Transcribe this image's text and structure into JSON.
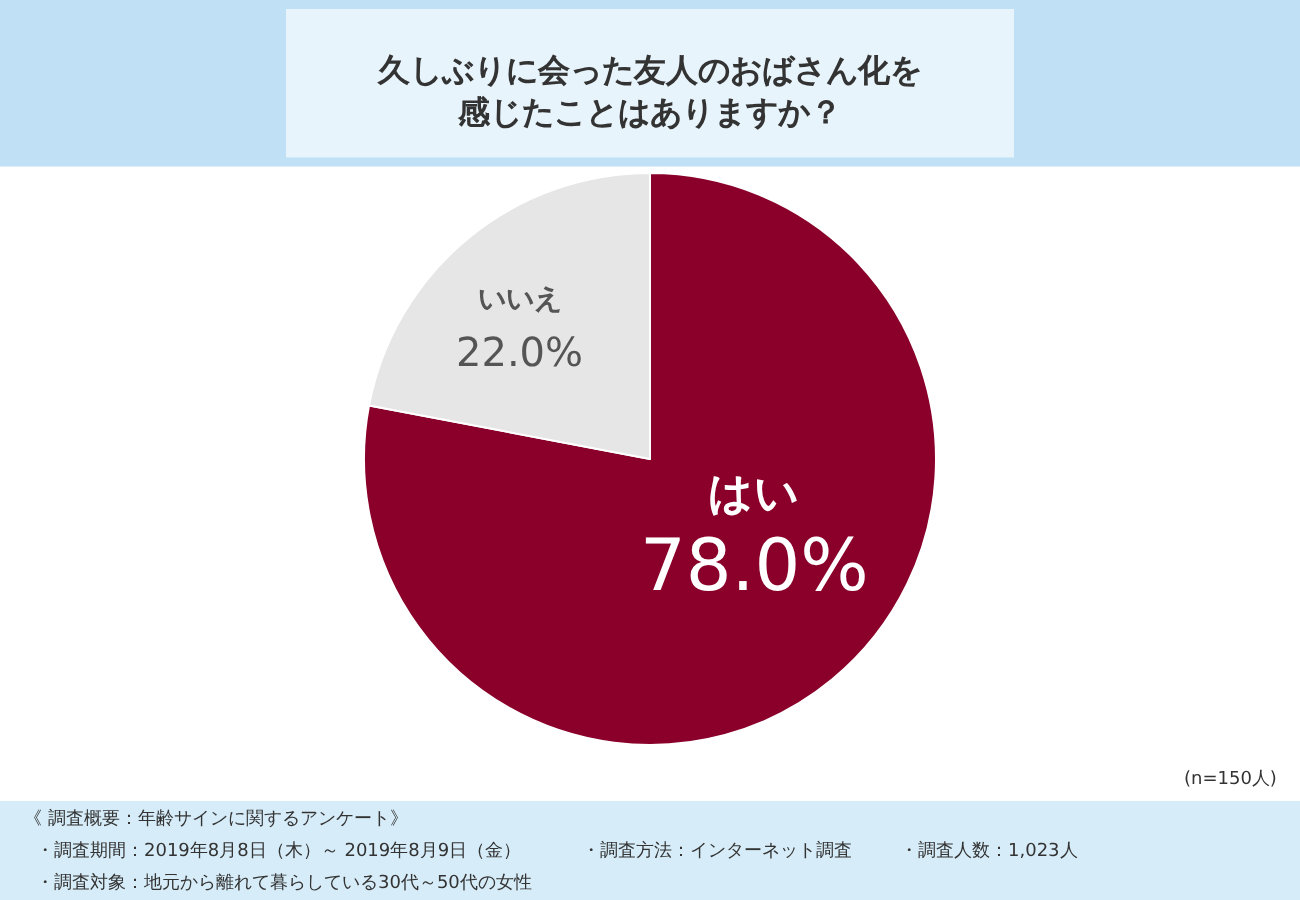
{
  "chart_data": {
    "type": "pie",
    "title": "久しぶりに会った友人のおばさん化を感じたことはありますか？",
    "categories": [
      "はい",
      "いいえ"
    ],
    "values": [
      78.0,
      22.0
    ],
    "colors": [
      "#8a002a",
      "#e6e6e6"
    ],
    "value_labels": [
      "78.0%",
      "22.0%"
    ],
    "legend": false,
    "annotations": [
      "(n=150人)",
      "《 調査概要：年齢サインに関するアンケート》",
      "・調査期間：2019年8月8日（木）～ 2019年8月9日（金）",
      "・調査方法：インターネット調査",
      "・調査人数：1,023人",
      "・調査対象：地元から離れて暮らしている30代～50代の女性"
    ]
  }
}
